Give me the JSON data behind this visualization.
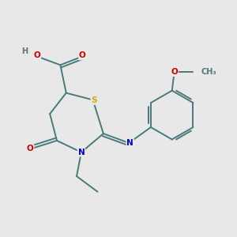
{
  "background_color": "#e8e8e8",
  "bond_color": "#4a7a7a",
  "atom_colors": {
    "S": "#c8b400",
    "N": "#0000cc",
    "O": "#cc0000",
    "H": "#4a7a7a",
    "C": "#4a7a7a"
  }
}
